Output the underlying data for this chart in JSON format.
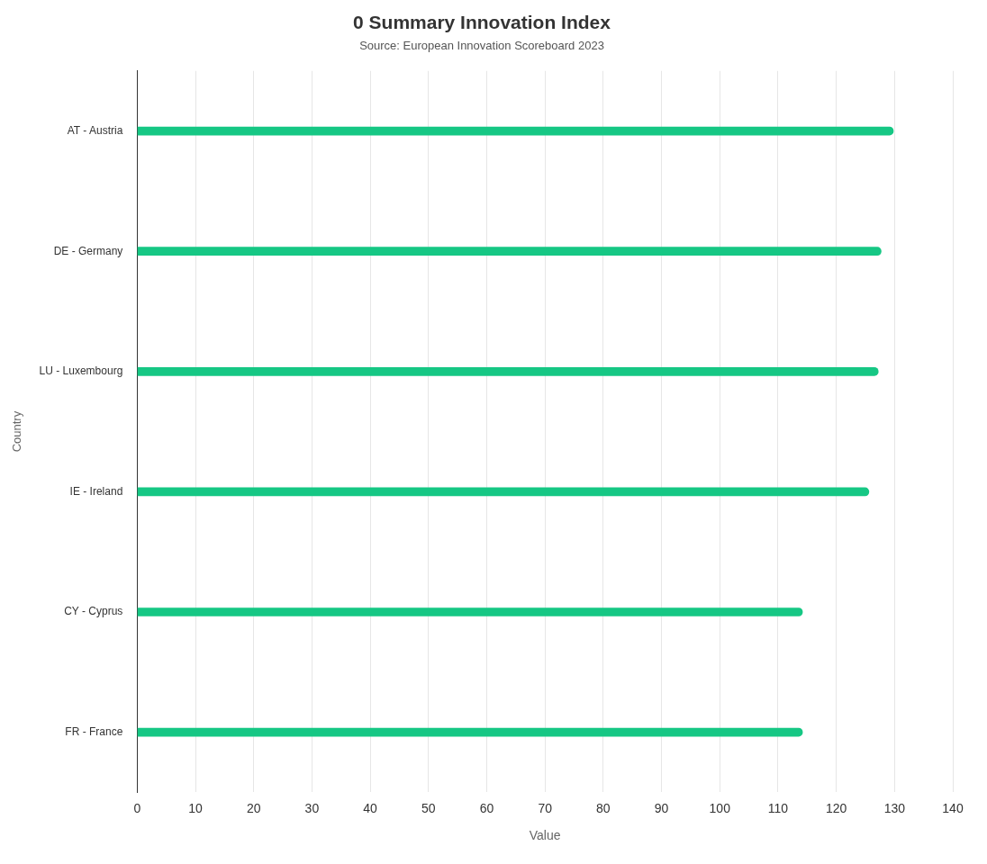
{
  "chart_data": {
    "type": "bar",
    "orientation": "horizontal",
    "title": "0 Summary Innovation Index",
    "subtitle": "Source: European Innovation Scoreboard 2023",
    "xlabel": "Value",
    "ylabel": "Country",
    "categories": [
      "AT - Austria",
      "DE - Germany",
      "LU - Luxembourg",
      "IE - Ireland",
      "CY - Cyprus",
      "FR - France"
    ],
    "values": [
      129.8,
      127.7,
      127.2,
      125.6,
      114.2,
      114.2
    ],
    "color": "#16c784",
    "xlim": [
      0,
      140
    ],
    "xticks": [
      0,
      10,
      20,
      30,
      40,
      50,
      60,
      70,
      80,
      90,
      100,
      110,
      120,
      130,
      140
    ],
    "grid": "x",
    "legend": false
  }
}
